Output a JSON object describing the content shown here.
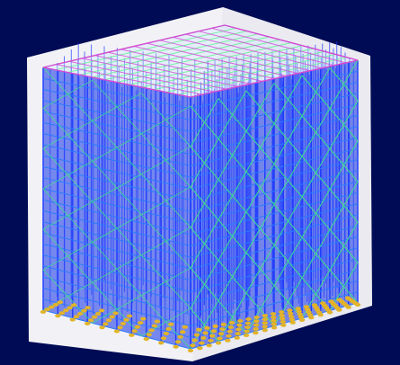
{
  "viewer": {
    "background": "#000b55",
    "panel_fill": "#f2f2f6",
    "panel_shade": "#dcdce6"
  },
  "model": {
    "description_shape": "3D scaffold frame (isometric view)",
    "colors": {
      "columns": "#1f3cff",
      "ledgers": "#2b7bff",
      "bracing": "#3de28a",
      "top_rail": "#d44ad4",
      "top_green": "#6cf09a",
      "supports": "#e2b329"
    },
    "grid": {
      "left_bays": 10,
      "right_bays": 18,
      "levels": 22
    }
  }
}
